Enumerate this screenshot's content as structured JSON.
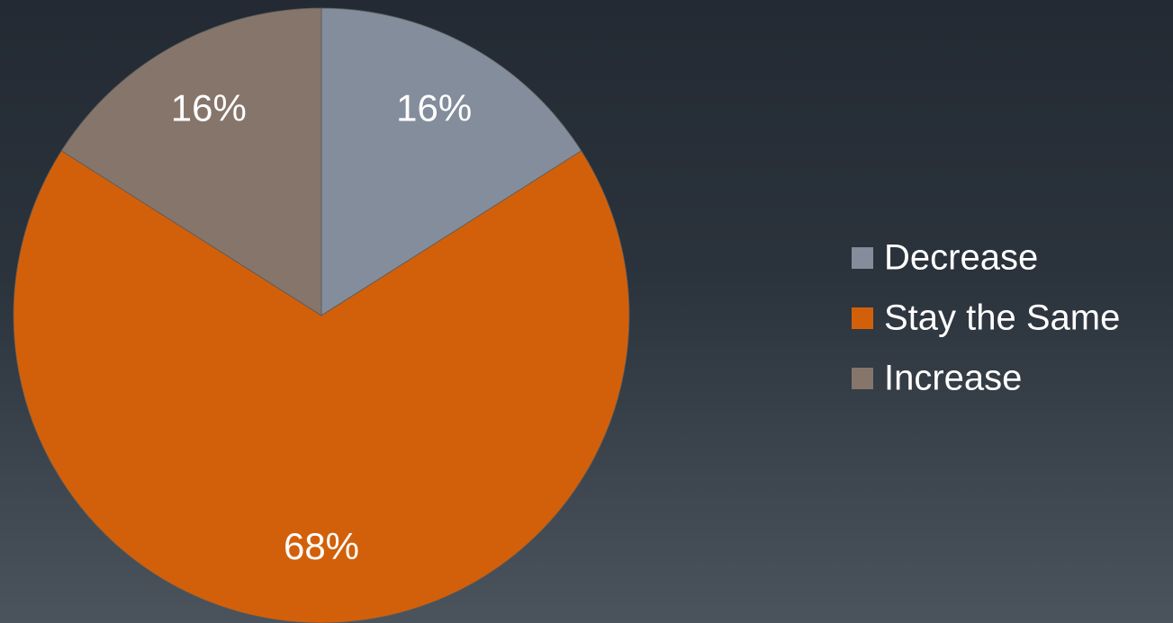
{
  "chart_data": {
    "type": "pie",
    "categories": [
      "Decrease",
      "Stay the Same",
      "Increase"
    ],
    "values": [
      16,
      68,
      16
    ],
    "value_labels": [
      "16%",
      "68%",
      "16%"
    ],
    "colors": [
      "#838d9b",
      "#d2600a",
      "#85756b"
    ],
    "legend": "right"
  }
}
